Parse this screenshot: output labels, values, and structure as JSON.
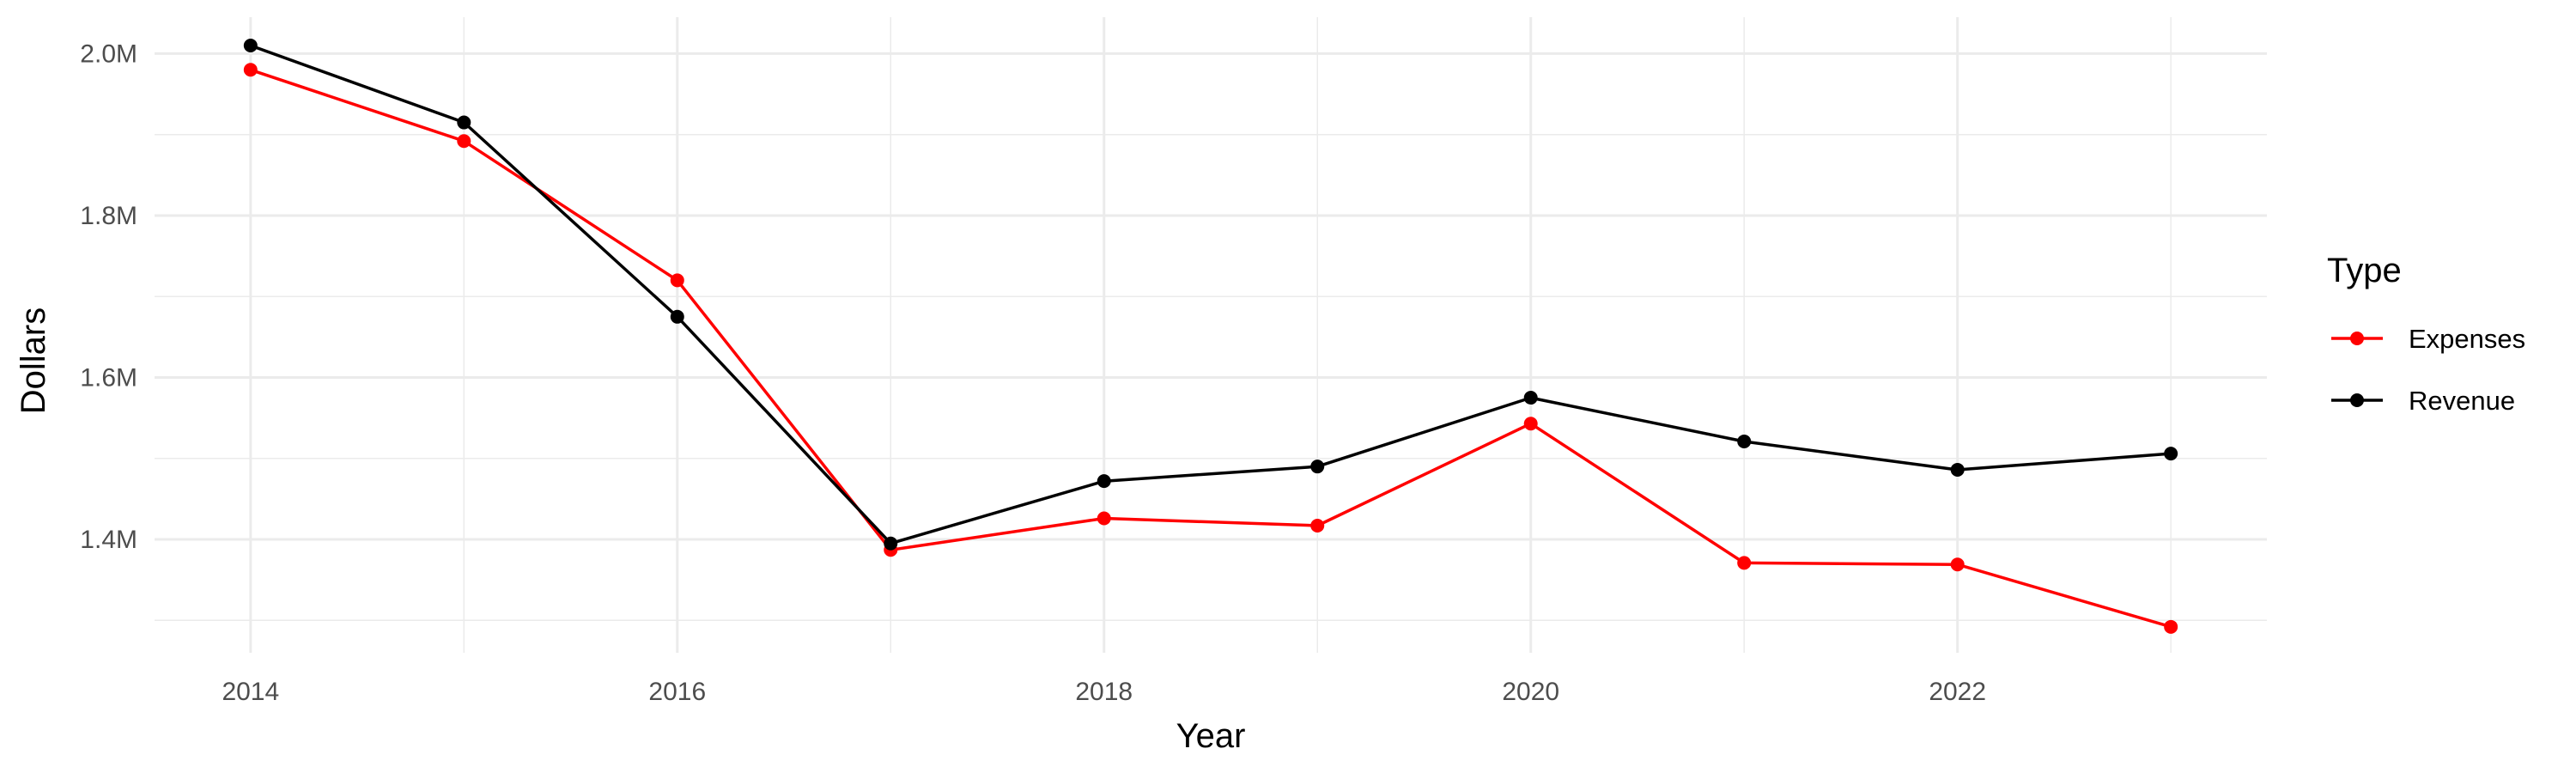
{
  "chart_data": {
    "type": "line",
    "title": "",
    "xlabel": "Year",
    "ylabel": "Dollars",
    "x": [
      2014,
      2015,
      2016,
      2017,
      2018,
      2019,
      2020,
      2021,
      2022,
      2023
    ],
    "xlim": [
      2013.55,
      2023.45
    ],
    "ylim": [
      1260000,
      2045000
    ],
    "x_ticks": [
      2014,
      2016,
      2018,
      2020,
      2022
    ],
    "x_tick_labels": [
      "2014",
      "2016",
      "2018",
      "2020",
      "2022"
    ],
    "y_ticks": [
      1400000,
      1600000,
      1800000,
      2000000
    ],
    "y_tick_labels": [
      "1.4M",
      "1.6M",
      "1.8M",
      "2.0M"
    ],
    "grid": true,
    "legend": {
      "title": "Type",
      "position": "right"
    },
    "series": [
      {
        "name": "Expenses",
        "color": "#ff0000",
        "values": [
          1980000,
          1892000,
          1720000,
          1387000,
          1426000,
          1417000,
          1543000,
          1371000,
          1369000,
          1292000
        ]
      },
      {
        "name": "Revenue",
        "color": "#000000",
        "values": [
          2010000,
          1915000,
          1675000,
          1395000,
          1472000,
          1490000,
          1575000,
          1521000,
          1486000,
          1506000
        ]
      }
    ]
  }
}
